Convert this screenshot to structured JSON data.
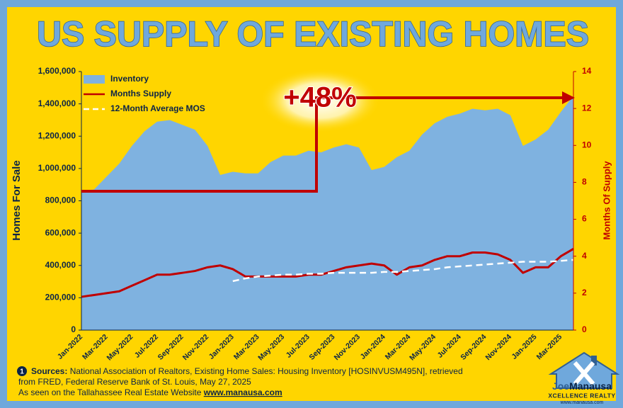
{
  "chart_data": {
    "type": "line",
    "title": "US SUPPLY OF EXISTING HOMES",
    "ylabel": "Homes For Sale",
    "y2label": "Months Of Supply",
    "annotation": "+48%",
    "categories": [
      "Jan-2022",
      null,
      "Mar-2022",
      null,
      "May-2022",
      null,
      "Jul-2022",
      null,
      "Sep-2022",
      null,
      "Nov-2022",
      null,
      "Jan-2023",
      null,
      "Mar-2023",
      null,
      "May-2023",
      null,
      "Jul-2023",
      null,
      "Sep-2023",
      null,
      "Nov-2023",
      null,
      "Jan-2024",
      null,
      "Mar-2024",
      null,
      "May-2024",
      null,
      "Jul-2024",
      null,
      "Sep-2024",
      null,
      "Nov-2024",
      null,
      "Jan-2025",
      null,
      "Mar-2025",
      null
    ],
    "series": [
      {
        "name": "Inventory",
        "kind": "area",
        "color": "#7fb2e0",
        "values": [
          860000,
          870000,
          950000,
          1030000,
          1140000,
          1230000,
          1290000,
          1300000,
          1270000,
          1240000,
          1140000,
          960000,
          980000,
          970000,
          970000,
          1040000,
          1080000,
          1080000,
          1110000,
          1100000,
          1130000,
          1150000,
          1130000,
          990000,
          1010000,
          1070000,
          1110000,
          1210000,
          1280000,
          1320000,
          1340000,
          1370000,
          1360000,
          1370000,
          1330000,
          1140000,
          1180000,
          1240000,
          1350000,
          1450000
        ]
      },
      {
        "name": "Months Supply",
        "kind": "line",
        "axis": "y2",
        "color": "#c00000",
        "values": [
          1.8,
          1.9,
          2.0,
          2.1,
          2.4,
          2.7,
          3.0,
          3.0,
          3.1,
          3.2,
          3.4,
          3.5,
          3.3,
          2.9,
          2.9,
          2.9,
          2.9,
          2.9,
          3.0,
          3.0,
          3.2,
          3.4,
          3.5,
          3.6,
          3.5,
          3.0,
          3.4,
          3.5,
          3.8,
          4.0,
          4.0,
          4.2,
          4.2,
          4.1,
          3.8,
          3.1,
          3.4,
          3.4,
          4.0,
          4.4
        ]
      },
      {
        "name": "12-Month Average MOS",
        "kind": "line",
        "dashed": true,
        "axis": "y2",
        "color": "#ffffff",
        "values": [
          null,
          null,
          null,
          null,
          null,
          null,
          null,
          null,
          null,
          null,
          null,
          null,
          2.65,
          2.8,
          2.9,
          2.95,
          3.0,
          3.0,
          3.05,
          3.05,
          3.1,
          3.1,
          3.1,
          3.1,
          3.15,
          3.15,
          3.2,
          3.25,
          3.3,
          3.4,
          3.45,
          3.5,
          3.55,
          3.6,
          3.65,
          3.7,
          3.7,
          3.7,
          3.75,
          3.8
        ]
      }
    ],
    "ylim": [
      0,
      1600000
    ],
    "yticks": [
      0,
      {
        "value": 200000,
        "label": "200,000"
      },
      {
        "value": 400000,
        "label": "400,000"
      },
      {
        "value": 600000,
        "label": "600,000"
      },
      {
        "value": 800000,
        "label": "800,000"
      },
      {
        "value": 1000000,
        "label": "1,000,000"
      },
      {
        "value": 1200000,
        "label": "1,200,000"
      },
      {
        "value": 1400000,
        "label": "1,400,000"
      },
      {
        "value": 1600000,
        "label": "1,600,000"
      }
    ],
    "y2lim": [
      0,
      14
    ],
    "y2ticks": [
      0,
      2,
      4,
      6,
      8,
      10,
      12,
      14
    ],
    "legend": "upper left"
  },
  "footer": {
    "number": "1",
    "label": "Sources:",
    "line1": "National Association of Realtors, Existing Home Sales: Housing Inventory [HOSINVUSM495N], retrieved",
    "line2": "from FRED, Federal Reserve Bank of St. Louis, May 27, 2025",
    "line3": "As seen on the Tallahassee Real Estate Website",
    "link": "www.manausa.com"
  },
  "logo": {
    "first": "Joe",
    "last": "Manausa",
    "tagline": "XCELLENCE REALTY",
    "url": "www.manausa.com"
  }
}
